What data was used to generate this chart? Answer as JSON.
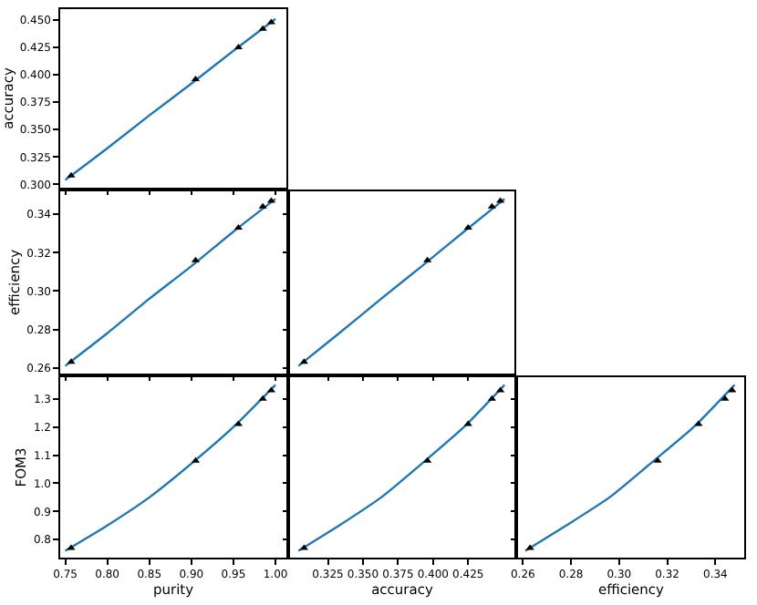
{
  "chart_data": [
    {
      "type": "line",
      "ylabel": "accuracy",
      "xlim": [
        0.744,
        1.013
      ],
      "ylim": [
        0.297,
        0.46
      ],
      "xticks": [
        {
          "value": 0.75,
          "label": null
        },
        {
          "value": 0.8,
          "label": null
        },
        {
          "value": 0.85,
          "label": null
        },
        {
          "value": 0.9,
          "label": null
        },
        {
          "value": 0.95,
          "label": null
        },
        {
          "value": 1.0,
          "label": null
        }
      ],
      "yticks": [
        {
          "value": 0.3,
          "label": "0.300"
        },
        {
          "value": 0.325,
          "label": "0.325"
        },
        {
          "value": 0.35,
          "label": "0.350"
        },
        {
          "value": 0.375,
          "label": "0.375"
        },
        {
          "value": 0.4,
          "label": "0.400"
        },
        {
          "value": 0.425,
          "label": "0.425"
        },
        {
          "value": 0.45,
          "label": "0.450"
        }
      ],
      "tick_labels": "y",
      "series": [
        {
          "type": "line",
          "color": "#1f77b4",
          "x": [
            0.75,
            0.8,
            0.85,
            0.9,
            0.95,
            1.0
          ],
          "values": [
            0.304,
            0.333,
            0.363,
            0.392,
            0.422,
            0.451
          ]
        },
        {
          "type": "scatter",
          "color": "#000000",
          "marker": "triangle",
          "x": [
            0.757,
            0.905,
            0.956,
            0.985,
            0.995
          ],
          "values": [
            0.308,
            0.396,
            0.425,
            0.442,
            0.448
          ]
        }
      ]
    },
    {
      "type": "line",
      "ylabel": "efficiency",
      "xlim": [
        0.744,
        1.013
      ],
      "ylim": [
        0.257,
        0.352
      ],
      "xticks": [
        {
          "value": 0.75,
          "label": null
        },
        {
          "value": 0.8,
          "label": null
        },
        {
          "value": 0.85,
          "label": null
        },
        {
          "value": 0.9,
          "label": null
        },
        {
          "value": 0.95,
          "label": null
        },
        {
          "value": 1.0,
          "label": null
        }
      ],
      "yticks": [
        0.26,
        0.28,
        {
          "value": 0.3,
          "label": "0.30"
        },
        0.32,
        0.34
      ],
      "tick_labels": "y",
      "series": [
        {
          "type": "line",
          "color": "#1f77b4",
          "x": [
            0.75,
            0.8,
            0.85,
            0.9,
            0.95,
            1.0
          ],
          "values": [
            0.261,
            0.278,
            0.296,
            0.313,
            0.331,
            0.348
          ]
        },
        {
          "type": "scatter",
          "color": "#000000",
          "marker": "triangle",
          "x": [
            0.757,
            0.905,
            0.956,
            0.985,
            0.995
          ],
          "values": [
            0.263,
            0.316,
            0.333,
            0.344,
            0.347
          ]
        }
      ]
    },
    {
      "type": "line",
      "xlim": [
        0.298,
        0.458
      ],
      "ylim": [
        0.257,
        0.352
      ],
      "xticks": [
        {
          "value": 0.325,
          "label": null
        },
        {
          "value": 0.35,
          "label": null
        },
        {
          "value": 0.375,
          "label": null
        },
        {
          "value": 0.4,
          "label": null
        },
        {
          "value": 0.425,
          "label": null
        }
      ],
      "yticks": [
        {
          "value": 0.26,
          "label": null
        },
        {
          "value": 0.28,
          "label": null
        },
        {
          "value": 0.3,
          "label": null
        },
        {
          "value": 0.32,
          "label": null
        },
        {
          "value": 0.34,
          "label": null
        }
      ],
      "tick_labels": false,
      "series": [
        {
          "type": "line",
          "color": "#1f77b4",
          "x": [
            0.304,
            0.333,
            0.363,
            0.392,
            0.422,
            0.451
          ],
          "values": [
            0.261,
            0.278,
            0.296,
            0.313,
            0.331,
            0.348
          ]
        },
        {
          "type": "scatter",
          "color": "#000000",
          "marker": "triangle",
          "x": [
            0.308,
            0.396,
            0.425,
            0.442,
            0.448
          ],
          "values": [
            0.263,
            0.316,
            0.333,
            0.344,
            0.347
          ]
        }
      ]
    },
    {
      "type": "line",
      "xlabel": "purity",
      "ylabel": "FOM3",
      "xlim": [
        0.744,
        1.013
      ],
      "ylim": [
        0.736,
        1.377
      ],
      "xticks": [
        {
          "value": 0.75,
          "label": "0.75"
        },
        {
          "value": 0.8,
          "label": "0.80"
        },
        {
          "value": 0.85,
          "label": "0.85"
        },
        {
          "value": 0.9,
          "label": "0.90"
        },
        {
          "value": 0.95,
          "label": "0.95"
        },
        {
          "value": 1.0,
          "label": "1.00"
        }
      ],
      "yticks": [
        0.8,
        0.9,
        {
          "value": 1.0,
          "label": "1.0"
        },
        1.1,
        1.2,
        1.3
      ],
      "series": [
        {
          "type": "line",
          "color": "#1f77b4",
          "x": [
            0.75,
            0.8,
            0.85,
            0.9,
            0.95,
            1.0
          ],
          "values": [
            0.76,
            0.85,
            0.95,
            1.07,
            1.2,
            1.35
          ]
        },
        {
          "type": "scatter",
          "color": "#000000",
          "marker": "triangle",
          "x": [
            0.757,
            0.905,
            0.956,
            0.985,
            0.995
          ],
          "values": [
            0.77,
            1.08,
            1.21,
            1.3,
            1.33
          ]
        }
      ]
    },
    {
      "type": "line",
      "xlabel": "accuracy",
      "xlim": [
        0.298,
        0.458
      ],
      "ylim": [
        0.736,
        1.377
      ],
      "xticks": [
        0.325,
        {
          "value": 0.35,
          "label": "0.350"
        },
        0.375,
        {
          "value": 0.4,
          "label": "0.400"
        },
        0.425
      ],
      "yticks": [
        {
          "value": 0.8,
          "label": null
        },
        {
          "value": 0.9,
          "label": null
        },
        {
          "value": 1.0,
          "label": null
        },
        {
          "value": 1.1,
          "label": null
        },
        {
          "value": 1.2,
          "label": null
        },
        {
          "value": 1.3,
          "label": null
        }
      ],
      "tick_labels": "x",
      "series": [
        {
          "type": "line",
          "color": "#1f77b4",
          "x": [
            0.304,
            0.333,
            0.363,
            0.392,
            0.422,
            0.451
          ],
          "values": [
            0.76,
            0.85,
            0.95,
            1.07,
            1.2,
            1.35
          ]
        },
        {
          "type": "scatter",
          "color": "#000000",
          "marker": "triangle",
          "x": [
            0.308,
            0.396,
            0.425,
            0.442,
            0.448
          ],
          "values": [
            0.77,
            1.08,
            1.21,
            1.3,
            1.33
          ]
        }
      ]
    },
    {
      "type": "line",
      "xlabel": "efficiency",
      "xlim": [
        0.258,
        0.352
      ],
      "ylim": [
        0.736,
        1.377
      ],
      "xticks": [
        0.26,
        0.28,
        {
          "value": 0.3,
          "label": "0.30"
        },
        0.32,
        0.34
      ],
      "yticks": [
        {
          "value": 0.8,
          "label": null
        },
        {
          "value": 0.9,
          "label": null
        },
        {
          "value": 1.0,
          "label": null
        },
        {
          "value": 1.1,
          "label": null
        },
        {
          "value": 1.2,
          "label": null
        },
        {
          "value": 1.3,
          "label": null
        }
      ],
      "tick_labels": "x",
      "series": [
        {
          "type": "line",
          "color": "#1f77b4",
          "x": [
            0.261,
            0.278,
            0.296,
            0.313,
            0.331,
            0.348
          ],
          "values": [
            0.76,
            0.85,
            0.95,
            1.07,
            1.2,
            1.35
          ]
        },
        {
          "type": "scatter",
          "color": "#000000",
          "marker": "triangle",
          "x": [
            0.263,
            0.316,
            0.333,
            0.344,
            0.347
          ],
          "values": [
            0.77,
            1.08,
            1.21,
            1.3,
            1.33
          ]
        }
      ]
    }
  ]
}
